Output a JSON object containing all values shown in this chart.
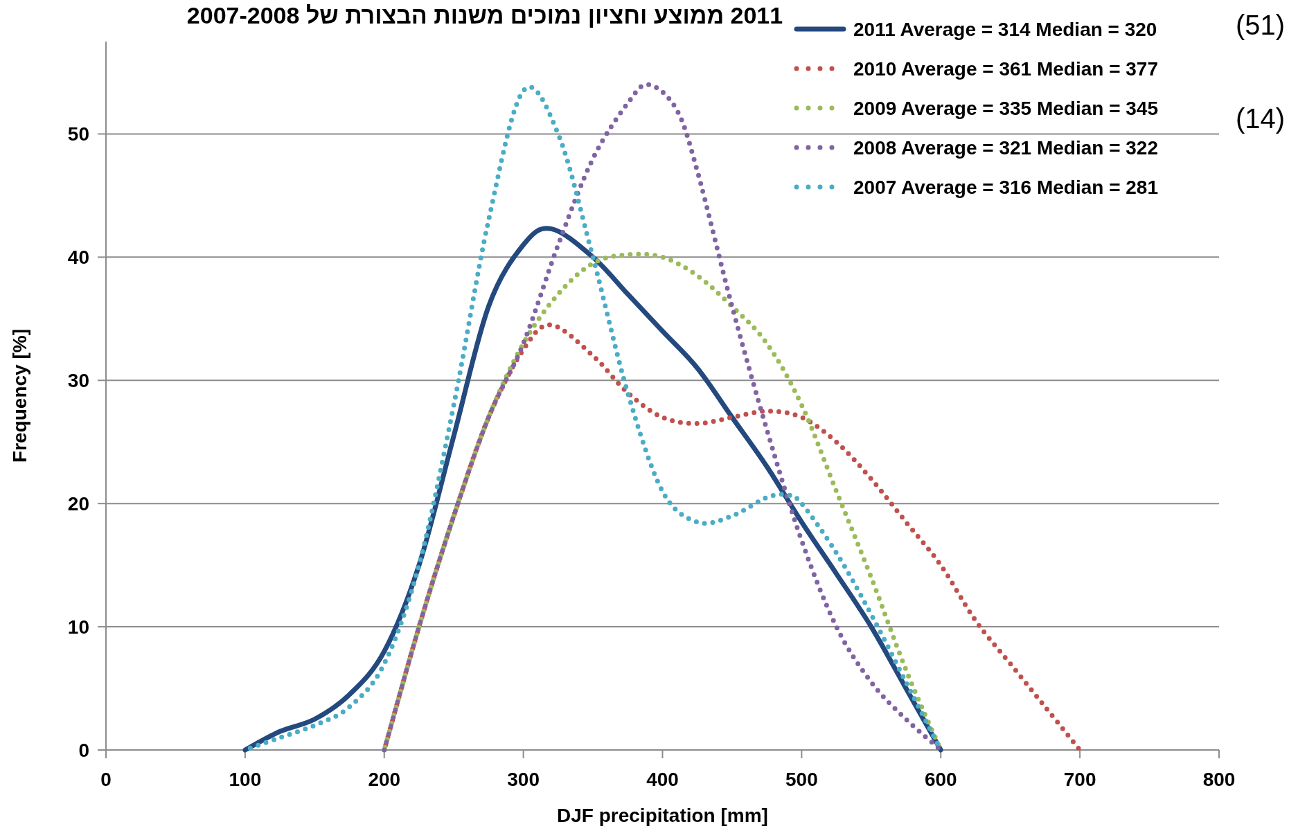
{
  "chart_data": {
    "type": "line",
    "title": "2011 ממוצע וחציון נמוכים משנות הבצורת של 2007-2008",
    "xlabel": "DJF precipitation [mm]",
    "ylabel": "Frequency [%]",
    "xlim": [
      0,
      800
    ],
    "xticks": [
      0,
      100,
      200,
      300,
      400,
      500,
      600,
      700,
      800
    ],
    "ylim": [
      0,
      57.5
    ],
    "yticks": [
      0,
      10,
      20,
      30,
      40,
      50
    ],
    "grid": "y",
    "legend": "top right",
    "marker": "none",
    "annotations": [
      "(51)",
      "(14)"
    ],
    "series": [
      {
        "name": "2011 Average = 314 Median = 320",
        "color": "#24497e",
        "line_style": "solid",
        "x": [
          100,
          125,
          150,
          175,
          200,
          225,
          250,
          275,
          300,
          320,
          350,
          375,
          400,
          425,
          450,
          475,
          500,
          525,
          550,
          575,
          600
        ],
        "values": [
          0,
          1.5,
          2.5,
          4.5,
          8,
          15,
          25.5,
          36,
          41,
          42.3,
          40,
          37,
          34,
          31,
          27,
          23,
          18.5,
          14.3,
          10,
          5,
          0
        ]
      },
      {
        "name": "2010 Average = 361 Median = 377",
        "color": "#c0504d",
        "line_style": "dotted",
        "x": [
          200,
          225,
          250,
          275,
          300,
          320,
          350,
          375,
          400,
          425,
          450,
          475,
          500,
          525,
          550,
          575,
          600,
          625,
          650,
          675,
          700
        ],
        "values": [
          0,
          10,
          19,
          27,
          32.5,
          34.5,
          32,
          29,
          27,
          26.5,
          27,
          27.5,
          27,
          25,
          22,
          18.5,
          15,
          10.5,
          7,
          3.5,
          0
        ]
      },
      {
        "name": "2009 Average = 335 Median = 345",
        "color": "#9bbb59",
        "line_style": "dotted",
        "x": [
          200,
          225,
          250,
          275,
          300,
          325,
          350,
          375,
          400,
          425,
          450,
          475,
          500,
          525,
          550,
          575,
          600
        ],
        "values": [
          0,
          10,
          19,
          27,
          33,
          37,
          39.5,
          40.2,
          40,
          38.5,
          36,
          33,
          28,
          21,
          14,
          6.5,
          0
        ]
      },
      {
        "name": "2008 Average = 321 Median = 322",
        "color": "#8064a2",
        "line_style": "dotted",
        "x": [
          200,
          225,
          250,
          275,
          300,
          325,
          350,
          375,
          390,
          410,
          425,
          450,
          475,
          500,
          525,
          550,
          575,
          600
        ],
        "values": [
          0,
          10,
          19,
          27,
          33,
          41,
          48,
          52.5,
          54,
          52,
          47,
          36,
          26,
          17,
          10,
          5.5,
          2.5,
          0
        ]
      },
      {
        "name": "2007 Average = 316 Median = 281",
        "color": "#4bacc6",
        "line_style": "dotted",
        "x": [
          100,
          125,
          150,
          175,
          200,
          225,
          250,
          275,
          300,
          325,
          350,
          375,
          400,
          425,
          450,
          475,
          490,
          500,
          525,
          550,
          575,
          600
        ],
        "values": [
          0,
          1,
          2,
          3.5,
          7,
          15,
          28,
          43,
          53.5,
          50,
          40,
          29,
          21,
          18.5,
          19,
          20.5,
          20.7,
          20,
          16,
          11,
          5.5,
          0
        ]
      }
    ]
  }
}
